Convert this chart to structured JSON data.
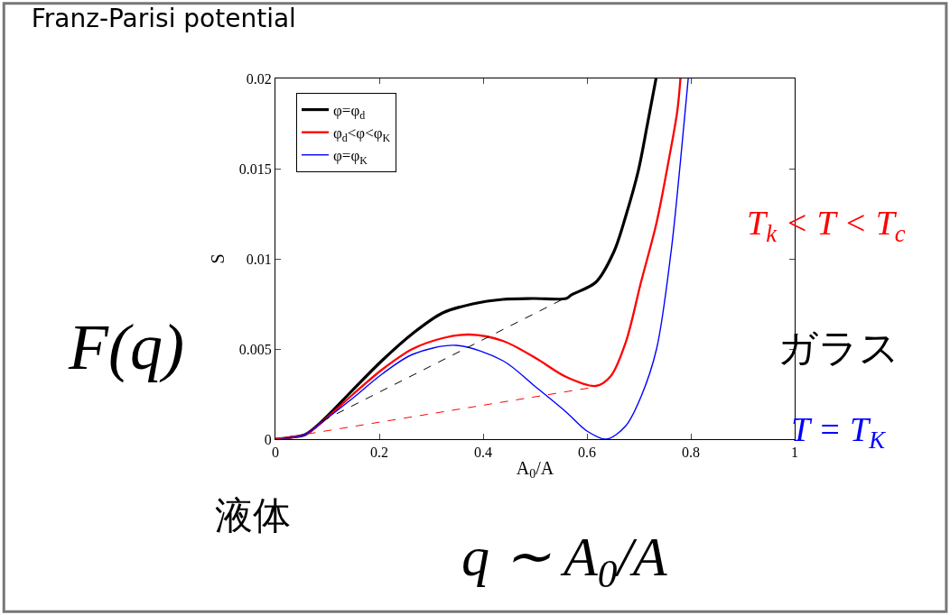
{
  "chart_data": {
    "type": "line",
    "title": "Franz-Parisi potential",
    "xlabel": "A$_{0}$/A",
    "ylabel": "S",
    "xlim": [
      0,
      1
    ],
    "xticks": [
      0,
      0.2,
      0.4,
      0.6,
      0.8,
      1
    ],
    "ylim": [
      0,
      0.02
    ],
    "yticks": [
      0,
      0.005,
      0.01,
      0.015,
      0.02
    ],
    "legend": "top left",
    "line_style": "solid",
    "marker": "none",
    "series": [
      {
        "name": "φ=φ$_{d}$",
        "color": "#000000",
        "x": [
          0,
          0.03,
          0.057,
          0.09,
          0.148,
          0.205,
          0.264,
          0.322,
          0.38,
          0.438,
          0.496,
          0.56,
          0.57,
          0.617,
          0.652,
          0.675,
          0.699,
          0.716,
          0.733
        ],
        "values": [
          0,
          0.0001,
          0.00025,
          0.001,
          0.0027,
          0.00435,
          0.00585,
          0.007,
          0.0075,
          0.00775,
          0.0078,
          0.0078,
          0.008,
          0.0087,
          0.0104,
          0.0124,
          0.0149,
          0.0174,
          0.02
        ]
      },
      {
        "name": "φ$_{d}$<φ<φ$_{K}$",
        "color": "#ff0000",
        "x": [
          0,
          0.03,
          0.057,
          0.09,
          0.148,
          0.205,
          0.264,
          0.322,
          0.374,
          0.438,
          0.501,
          0.56,
          0.617,
          0.646,
          0.675,
          0.704,
          0.734,
          0.757,
          0.774,
          0.78
        ],
        "values": [
          0,
          0.0001,
          0.00025,
          0.00095,
          0.00245,
          0.00385,
          0.005,
          0.0056,
          0.0058,
          0.00545,
          0.0045,
          0.00345,
          0.00295,
          0.0035,
          0.0054,
          0.0087,
          0.012,
          0.0154,
          0.0182,
          0.02
        ]
      },
      {
        "name": "φ=φ$_{K}$",
        "color": "#0000ff",
        "x": [
          0,
          0.03,
          0.057,
          0.09,
          0.148,
          0.205,
          0.264,
          0.348,
          0.438,
          0.501,
          0.56,
          0.6,
          0.638,
          0.675,
          0.704,
          0.734,
          0.762,
          0.78,
          0.795
        ],
        "values": [
          0,
          0.0001,
          0.00025,
          0.00095,
          0.00225,
          0.0036,
          0.0047,
          0.0052,
          0.00435,
          0.0029,
          0.0015,
          0.00045,
          0,
          0.00075,
          0.00235,
          0.005,
          0.0104,
          0.0154,
          0.02
        ]
      },
      {
        "color": "#000000",
        "line_style": "dashed",
        "x": [
          0.09,
          0.57
        ],
        "values": [
          0.001,
          0.008
        ]
      },
      {
        "color": "#ff0000",
        "line_style": "dashed",
        "x": [
          0,
          0.617
        ],
        "values": [
          0,
          0.0029
        ]
      }
    ],
    "annotations": [
      "F(q)",
      "液体",
      "ガラス",
      "q ∼ A$_{0}$/A",
      "T$_{k}$ < T < T$_{c}$",
      "T = T$_{K}$"
    ]
  }
}
